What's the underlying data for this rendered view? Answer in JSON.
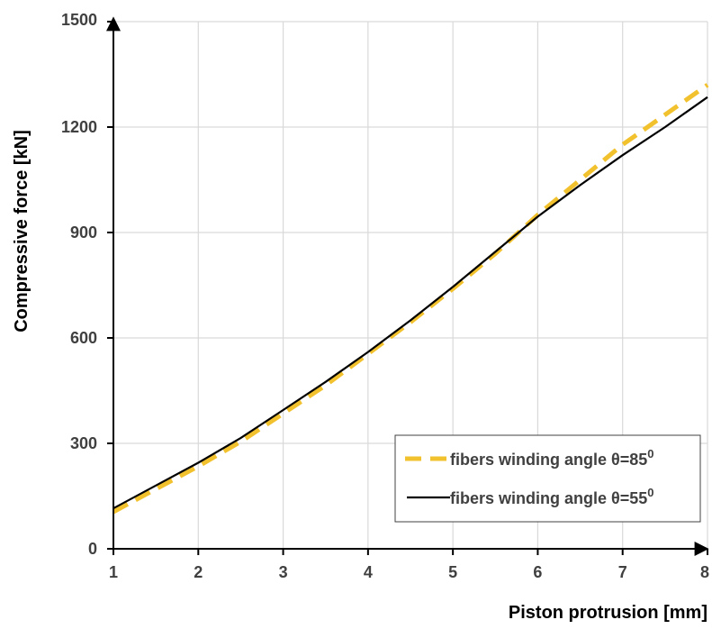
{
  "chart_data": {
    "type": "line",
    "title": "",
    "xlabel": "Piston protrusion [mm]",
    "ylabel": "Compressive force [kN]",
    "xlim": [
      1,
      8
    ],
    "ylim": [
      0,
      1500
    ],
    "x_ticks": [
      1,
      2,
      3,
      4,
      5,
      6,
      7,
      8
    ],
    "y_ticks": [
      0,
      300,
      600,
      900,
      1200,
      1500
    ],
    "grid": true,
    "legend_position": "bottom-right",
    "series": [
      {
        "name": "fibers winding angle θ=85",
        "name_superscript": "0",
        "color": "#f2c12e",
        "style": "dashed",
        "x": [
          1,
          1.5,
          2,
          2.5,
          3,
          3.5,
          4,
          4.5,
          5,
          5.5,
          6,
          6.5,
          7,
          7.5,
          8
        ],
        "y": [
          105,
          170,
          235,
          305,
          385,
          465,
          555,
          645,
          740,
          840,
          950,
          1050,
          1150,
          1235,
          1320
        ]
      },
      {
        "name": "fibers winding angle θ=55",
        "name_superscript": "0",
        "color": "#000000",
        "style": "solid",
        "x": [
          1,
          1.5,
          2,
          2.5,
          3,
          3.5,
          4,
          4.5,
          5,
          5.5,
          6,
          6.5,
          7,
          7.5,
          8
        ],
        "y": [
          115,
          180,
          245,
          315,
          395,
          475,
          560,
          650,
          745,
          845,
          945,
          1035,
          1120,
          1200,
          1285
        ]
      }
    ]
  }
}
